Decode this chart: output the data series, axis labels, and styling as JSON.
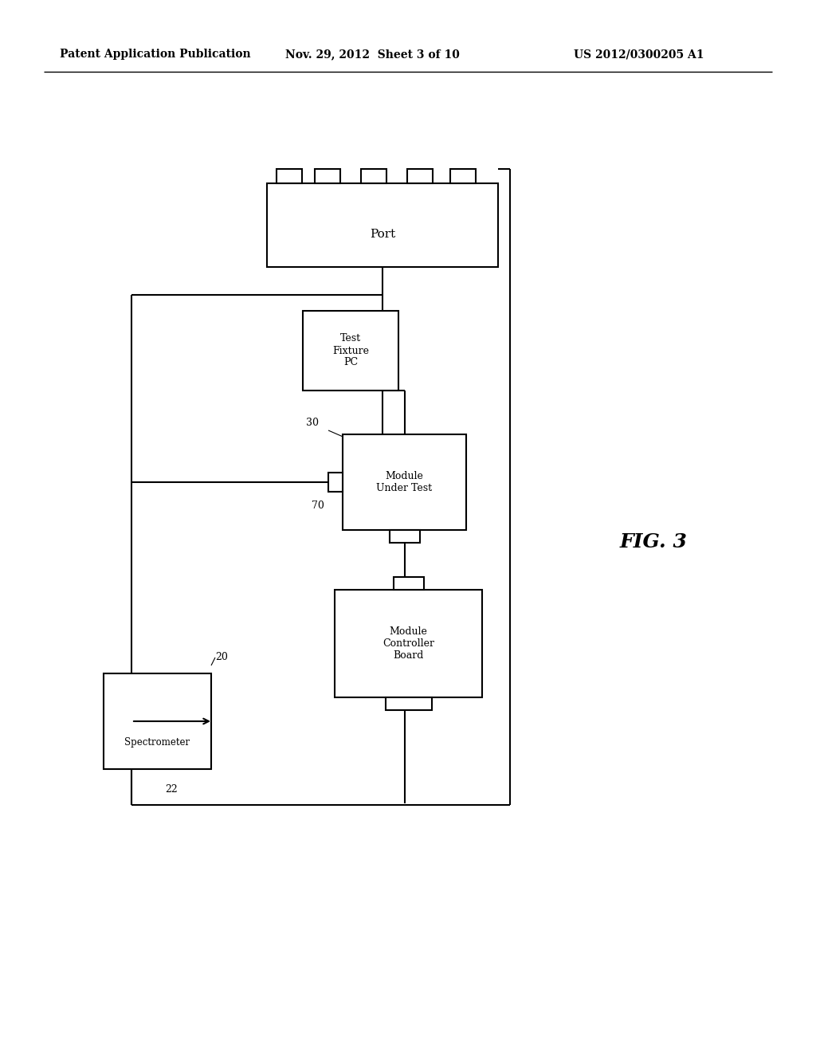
{
  "bg_color": "#ffffff",
  "header_left": "Patent Application Publication",
  "header_mid": "Nov. 29, 2012  Sheet 3 of 10",
  "header_right": "US 2012/0300205 A1",
  "fig_label": "FIG. 3",
  "line_color": "#000000",
  "text_color": "#000000"
}
